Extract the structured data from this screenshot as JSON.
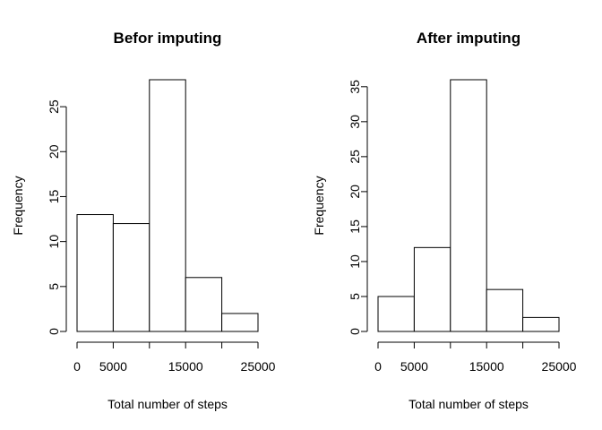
{
  "chart_data": [
    {
      "type": "bar",
      "title": "Befor imputing",
      "xlabel": "Total number of steps",
      "ylabel": "Frequency",
      "bins": [
        [
          0,
          5000
        ],
        [
          5000,
          10000
        ],
        [
          10000,
          15000
        ],
        [
          15000,
          20000
        ],
        [
          20000,
          25000
        ]
      ],
      "values": [
        13,
        12,
        28,
        6,
        2
      ],
      "xlim": [
        0,
        25000
      ],
      "ylim": [
        0,
        28
      ],
      "x_ticks": [
        0,
        5000,
        10000,
        15000,
        20000,
        25000
      ],
      "x_tick_labels": [
        "0",
        "5000",
        "",
        "15000",
        "",
        "25000"
      ],
      "y_ticks": [
        0,
        5,
        10,
        15,
        20,
        25
      ],
      "y_tick_labels": [
        "0",
        "5",
        "10",
        "15",
        "20",
        "25"
      ],
      "grid": false
    },
    {
      "type": "bar",
      "title": "After imputing",
      "xlabel": "Total number of steps",
      "ylabel": "Frequency",
      "bins": [
        [
          0,
          5000
        ],
        [
          5000,
          10000
        ],
        [
          10000,
          15000
        ],
        [
          15000,
          20000
        ],
        [
          20000,
          25000
        ]
      ],
      "values": [
        5,
        12,
        36,
        6,
        2
      ],
      "xlim": [
        0,
        25000
      ],
      "ylim": [
        0,
        36
      ],
      "x_ticks": [
        0,
        5000,
        10000,
        15000,
        20000,
        25000
      ],
      "x_tick_labels": [
        "0",
        "5000",
        "",
        "15000",
        "",
        "25000"
      ],
      "y_ticks": [
        0,
        5,
        10,
        15,
        20,
        25,
        30,
        35
      ],
      "y_tick_labels": [
        "0",
        "5",
        "10",
        "15",
        "20",
        "25",
        "30",
        "35"
      ],
      "grid": false
    }
  ]
}
